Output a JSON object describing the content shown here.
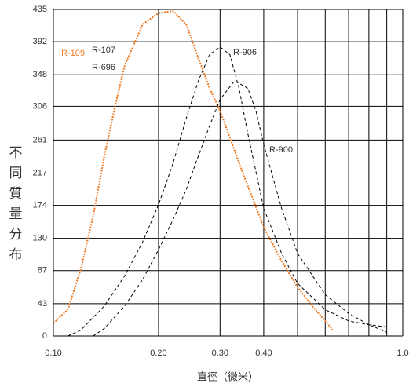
{
  "chart_data": {
    "type": "line",
    "ylabel": "不同質量分布",
    "xlabel": "直徑（微米）",
    "xlog": true,
    "xlim": [
      0.1,
      1.0
    ],
    "ylim": [
      0,
      435
    ],
    "xticks": [
      {
        "value": 0.1,
        "label": "0.10"
      },
      {
        "value": 0.2,
        "label": "0.20"
      },
      {
        "value": 0.3,
        "label": "0.30"
      },
      {
        "value": 0.4,
        "label": "0.40"
      },
      {
        "value": 1.0,
        "label": "1.0"
      }
    ],
    "xminor": [
      0.5,
      0.6,
      0.7,
      0.8,
      0.9
    ],
    "yticks": [
      0,
      43,
      87,
      130,
      174,
      217,
      261,
      306,
      348,
      392,
      435
    ],
    "grid": true,
    "series": [
      {
        "name": "R-109",
        "color": "#f07820",
        "style": "dotted",
        "x": [
          0.1,
          0.11,
          0.12,
          0.13,
          0.14,
          0.15,
          0.16,
          0.18,
          0.2,
          0.22,
          0.24,
          0.26,
          0.28,
          0.3,
          0.35,
          0.4,
          0.45,
          0.5,
          0.55,
          0.6,
          0.63
        ],
        "values": [
          17,
          35,
          90,
          160,
          240,
          305,
          360,
          415,
          430,
          433,
          415,
          370,
          330,
          300,
          215,
          145,
          100,
          65,
          40,
          20,
          8
        ]
      },
      {
        "name": "R-906",
        "color": "#000000",
        "style": "dashed",
        "x": [
          0.11,
          0.12,
          0.14,
          0.16,
          0.18,
          0.2,
          0.22,
          0.24,
          0.26,
          0.28,
          0.3,
          0.32,
          0.34,
          0.36,
          0.4,
          0.45,
          0.5,
          0.6,
          0.7,
          0.8,
          0.9
        ],
        "values": [
          0,
          8,
          40,
          80,
          125,
          175,
          230,
          290,
          340,
          375,
          385,
          375,
          330,
          270,
          170,
          110,
          70,
          35,
          20,
          15,
          12
        ]
      },
      {
        "name": "R-900",
        "color": "#000000",
        "style": "dashed",
        "x": [
          0.13,
          0.14,
          0.16,
          0.18,
          0.2,
          0.22,
          0.24,
          0.26,
          0.28,
          0.3,
          0.33,
          0.36,
          0.38,
          0.4,
          0.45,
          0.5,
          0.6,
          0.7,
          0.8,
          0.9
        ],
        "values": [
          0,
          10,
          40,
          75,
          115,
          155,
          195,
          240,
          280,
          315,
          340,
          330,
          300,
          255,
          170,
          110,
          55,
          30,
          15,
          5
        ]
      }
    ],
    "annotations": [
      "R-107",
      "R-696"
    ]
  }
}
